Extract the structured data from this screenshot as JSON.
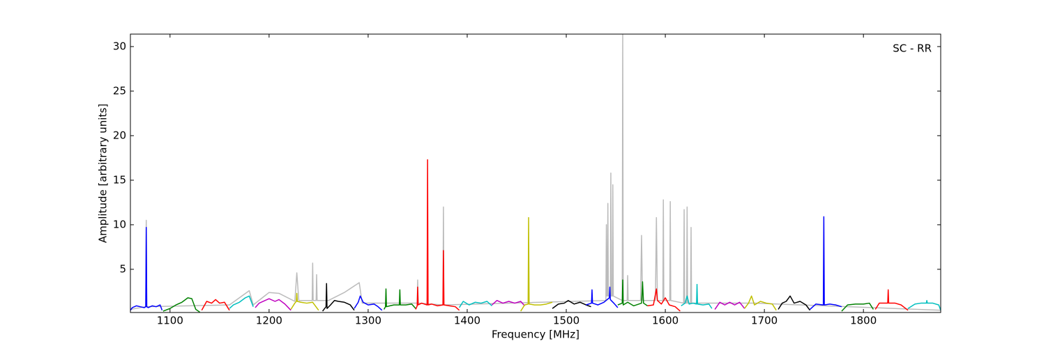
{
  "chart_data": {
    "type": "line",
    "annotation": "SC - RR",
    "xlabel": "Frequency [MHz]",
    "ylabel": "Amplitude [arbitrary units]",
    "xlim": [
      1060,
      1878
    ],
    "ylim": [
      0.15,
      31.4
    ],
    "xticks": [
      1100,
      1200,
      1300,
      1400,
      1500,
      1600,
      1700,
      1800
    ],
    "yticks": [
      5,
      10,
      15,
      20,
      25,
      30
    ],
    "series": [
      {
        "color": "#bbbbbb",
        "x": [
          1060,
          1075.5,
          1076,
          1076.5,
          1160,
          1180,
          1184,
          1200,
          1210,
          1226,
          1228,
          1230,
          1243.5,
          1244,
          1244.5,
          1247.5,
          1248,
          1248.5,
          1260,
          1276,
          1291,
          1294,
          1349.5,
          1350,
          1350.5,
          1375.5,
          1376,
          1376.5,
          1540,
          1540.5,
          1541,
          1541.5,
          1542,
          1542.5,
          1544.5,
          1545,
          1545.5,
          1546.5,
          1547,
          1547.5,
          1556.5,
          1557,
          1557.5,
          1561.5,
          1562,
          1562.5,
          1575,
          1576,
          1577,
          1590,
          1591,
          1592,
          1597.5,
          1598,
          1598.5,
          1604.5,
          1605,
          1605.5,
          1618.5,
          1619,
          1619.5,
          1621.5,
          1622,
          1622.5,
          1625.5,
          1626,
          1626.5,
          1690,
          1878
        ],
        "values": [
          0.5,
          0.8,
          10.5,
          0.8,
          1.0,
          2.6,
          1.0,
          2.4,
          2.3,
          1.4,
          4.6,
          1.5,
          1.5,
          5.7,
          1.5,
          1.5,
          4.4,
          1.5,
          1.5,
          2.4,
          3.5,
          1.2,
          1.2,
          3.8,
          1.2,
          1.0,
          12,
          1.0,
          1.5,
          10,
          2,
          2,
          12.4,
          2,
          2,
          15.8,
          2,
          2,
          14.5,
          2,
          1.5,
          31.4,
          1.5,
          1.5,
          4.3,
          1.5,
          1.5,
          8.8,
          1.5,
          1.5,
          10.8,
          1.5,
          1.5,
          12.8,
          1.5,
          1.5,
          12.6,
          1.5,
          1.2,
          11.7,
          1.2,
          1.2,
          12.0,
          1.2,
          1.2,
          9.7,
          1.2,
          1.2,
          0.4
        ]
      },
      {
        "color": "#0000ff",
        "x": [
          1060,
          1062,
          1066,
          1070,
          1074,
          1075.5,
          1076,
          1076.5,
          1078,
          1082,
          1086,
          1090,
          1092
        ],
        "values": [
          0.4,
          0.7,
          0.9,
          0.8,
          0.7,
          0.8,
          9.7,
          0.8,
          0.7,
          0.9,
          0.8,
          1.0,
          0.4
        ]
      },
      {
        "color": "#008000",
        "x": [
          1093,
          1100,
          1106,
          1112,
          1118,
          1122,
          1126,
          1130
        ],
        "values": [
          0.3,
          0.6,
          1.0,
          1.3,
          1.8,
          1.7,
          0.5,
          0.2
        ]
      },
      {
        "color": "#ff0000",
        "x": [
          1132,
          1137,
          1142,
          1146,
          1150,
          1155,
          1160
        ],
        "values": [
          0.4,
          1.4,
          1.2,
          1.6,
          1.2,
          1.3,
          0.4
        ]
      },
      {
        "color": "#00bfbf",
        "x": [
          1160,
          1164,
          1170,
          1176,
          1180,
          1184
        ],
        "values": [
          0.6,
          1.0,
          1.3,
          1.8,
          2.0,
          0.8
        ]
      },
      {
        "color": "#bf00bf",
        "x": [
          1186,
          1190,
          1196,
          1200,
          1206,
          1210,
          1216,
          1222
        ],
        "values": [
          0.7,
          1.2,
          1.5,
          1.7,
          1.4,
          1.6,
          1.1,
          0.4
        ]
      },
      {
        "color": "#bfbf00",
        "x": [
          1222,
          1226,
          1227.5,
          1228,
          1228.5,
          1232,
          1238,
          1244,
          1250
        ],
        "values": [
          0.5,
          1.2,
          1.4,
          2.3,
          1.4,
          1.3,
          1.2,
          1.3,
          0.4
        ]
      },
      {
        "color": "#000000",
        "x": [
          1254,
          1257.5,
          1258,
          1258.5,
          1262,
          1266,
          1270,
          1276,
          1282,
          1286
        ],
        "values": [
          0.3,
          0.8,
          3.4,
          0.6,
          1.0,
          1.5,
          1.4,
          1.3,
          1.0,
          0.4
        ]
      },
      {
        "color": "#0000ff",
        "x": [
          1286,
          1290,
          1292,
          1295,
          1300,
          1306,
          1310,
          1314
        ],
        "values": [
          0.6,
          1.3,
          2.0,
          1.3,
          1.0,
          1.1,
          0.8,
          0.4
        ]
      },
      {
        "color": "#008000",
        "x": [
          1316,
          1317.5,
          1318,
          1318.5,
          1322,
          1326,
          1331.5,
          1332,
          1332.5,
          1338,
          1344,
          1348
        ],
        "values": [
          0.5,
          0.8,
          2.8,
          0.8,
          0.9,
          1.0,
          1.0,
          2.7,
          1.0,
          1.0,
          1.1,
          0.6
        ]
      },
      {
        "color": "#ff0000",
        "x": [
          1348,
          1349.5,
          1350,
          1350.5,
          1354,
          1359.5,
          1360,
          1360.5,
          1364,
          1370,
          1375.5,
          1376,
          1376.5,
          1382,
          1388,
          1392
        ],
        "values": [
          0.5,
          0.9,
          3.0,
          1.0,
          1.2,
          1.0,
          17.3,
          1.0,
          1.1,
          0.9,
          1.0,
          7.1,
          1.0,
          0.9,
          0.8,
          0.4
        ]
      },
      {
        "color": "#00bfbf",
        "x": [
          1392,
          1396,
          1402,
          1408,
          1414,
          1420,
          1425
        ],
        "values": [
          0.7,
          1.4,
          1.0,
          1.3,
          1.2,
          1.4,
          0.9
        ]
      },
      {
        "color": "#bf00bf",
        "x": [
          1425,
          1430,
          1436,
          1442,
          1448,
          1454,
          1458
        ],
        "values": [
          1.0,
          1.5,
          1.2,
          1.4,
          1.2,
          1.4,
          0.9
        ]
      },
      {
        "color": "#bfbf00",
        "x": [
          1454,
          1458,
          1461.5,
          1462,
          1462.5,
          1468,
          1474,
          1480,
          1486
        ],
        "values": [
          0.3,
          1.0,
          1.1,
          10.8,
          1.1,
          1.0,
          1.0,
          1.1,
          1.3
        ]
      },
      {
        "color": "#000000",
        "x": [
          1486,
          1492,
          1498,
          1502,
          1508,
          1514,
          1520,
          1525
        ],
        "values": [
          0.6,
          1.1,
          1.2,
          1.5,
          1.1,
          1.3,
          1.0,
          0.8
        ]
      },
      {
        "color": "#0000ff",
        "x": [
          1520,
          1525.5,
          1526,
          1526.5,
          1532,
          1538,
          1543.5,
          1544,
          1544.5,
          1548,
          1552
        ],
        "values": [
          1.0,
          1.2,
          2.7,
          1.2,
          1.0,
          1.3,
          1.8,
          3.0,
          1.6,
          1.2,
          0.7
        ]
      },
      {
        "color": "#008000",
        "x": [
          1552,
          1556.5,
          1557,
          1557.5,
          1562,
          1568,
          1576,
          1577,
          1578,
          1582
        ],
        "values": [
          1.0,
          1.2,
          3.8,
          1.0,
          1.3,
          0.9,
          1.2,
          3.6,
          1.2,
          0.9
        ]
      },
      {
        "color": "#ff0000",
        "x": [
          1582,
          1588,
          1590,
          1591,
          1592,
          1596,
          1600,
          1604,
          1610,
          1615
        ],
        "values": [
          0.9,
          1.0,
          2.2,
          2.8,
          1.5,
          1.1,
          1.8,
          1.0,
          0.8,
          0.3
        ]
      },
      {
        "color": "#00bfbf",
        "x": [
          1616,
          1620,
          1622,
          1624,
          1628,
          1631.5,
          1632,
          1632.5,
          1638,
          1644,
          1647
        ],
        "values": [
          0.9,
          1.2,
          2.0,
          1.1,
          1.2,
          1.1,
          3.3,
          1.1,
          1.0,
          1.1,
          0.6
        ]
      },
      {
        "color": "#bf00bf",
        "x": [
          1650,
          1655,
          1660,
          1665,
          1670,
          1675,
          1680
        ],
        "values": [
          0.5,
          1.3,
          1.0,
          1.3,
          1.0,
          1.3,
          0.6
        ]
      },
      {
        "color": "#bfbf00",
        "x": [
          1680,
          1684,
          1687,
          1690,
          1696,
          1702,
          1708,
          1712
        ],
        "values": [
          0.6,
          1.2,
          2.0,
          1.0,
          1.4,
          1.2,
          1.1,
          0.4
        ]
      },
      {
        "color": "#000000",
        "x": [
          1714,
          1718,
          1722,
          1726,
          1730,
          1736,
          1742,
          1746
        ],
        "values": [
          0.5,
          1.2,
          1.4,
          2.0,
          1.2,
          1.4,
          1.0,
          0.4
        ]
      },
      {
        "color": "#0000ff",
        "x": [
          1746,
          1752,
          1759.5,
          1760,
          1760.5,
          1766,
          1772,
          1778
        ],
        "values": [
          0.5,
          1.1,
          1.0,
          10.9,
          1.0,
          1.1,
          1.0,
          0.8
        ]
      },
      {
        "color": "#008000",
        "x": [
          1778,
          1784,
          1792,
          1800,
          1806,
          1810
        ],
        "values": [
          0.3,
          1.0,
          1.1,
          1.1,
          1.2,
          0.5
        ]
      },
      {
        "color": "#ff0000",
        "x": [
          1812,
          1816,
          1824.5,
          1825,
          1825.5,
          1832,
          1838,
          1845
        ],
        "values": [
          0.5,
          1.2,
          1.2,
          2.7,
          1.2,
          1.2,
          1.0,
          0.4
        ]
      },
      {
        "color": "#00bfbf",
        "x": [
          1845,
          1852,
          1858,
          1863.5,
          1864,
          1864.5,
          1870,
          1876,
          1878
        ],
        "values": [
          0.6,
          1.1,
          1.2,
          1.2,
          1.5,
          1.2,
          1.2,
          1.0,
          0.4
        ]
      }
    ]
  }
}
